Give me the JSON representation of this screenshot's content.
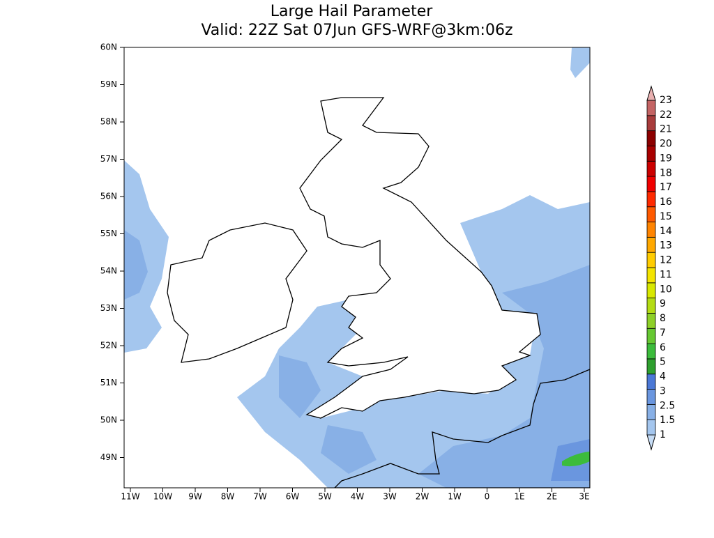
{
  "title": [
    "Large Hail Parameter",
    "Valid: 22Z Sat 07Jun GFS-WRF@3km:06z"
  ],
  "lat_labels": [
    "60N",
    "59N",
    "58N",
    "57N",
    "56N",
    "55N",
    "54N",
    "53N",
    "52N",
    "51N",
    "50N",
    "49N"
  ],
  "lon_labels": [
    "11W",
    "10W",
    "9W",
    "8W",
    "7W",
    "6W",
    "5W",
    "4W",
    "3W",
    "2W",
    "1W",
    "0",
    "1E",
    "2E",
    "3E"
  ],
  "colorbar": {
    "labels": [
      "1",
      "1.5",
      "2.5",
      "3",
      "4",
      "5",
      "6",
      "7",
      "8",
      "9",
      "10",
      "11",
      "12",
      "13",
      "14",
      "15",
      "16",
      "17",
      "18",
      "19",
      "20",
      "21",
      "22",
      "23"
    ],
    "colors": [
      "#c6dcf5",
      "#a4c6ee",
      "#88b0e6",
      "#6a96df",
      "#4b78d6",
      "#2fa02f",
      "#3cbc3c",
      "#66c832",
      "#8ed028",
      "#b4dc14",
      "#d8e800",
      "#f4e400",
      "#ffcc00",
      "#ffa800",
      "#ff8400",
      "#ff5a00",
      "#ff2a00",
      "#f00000",
      "#cc0000",
      "#a80000",
      "#8c0000",
      "#a83c3c",
      "#c46464",
      "#d88c8c",
      "#e8b0b0"
    ]
  }
}
